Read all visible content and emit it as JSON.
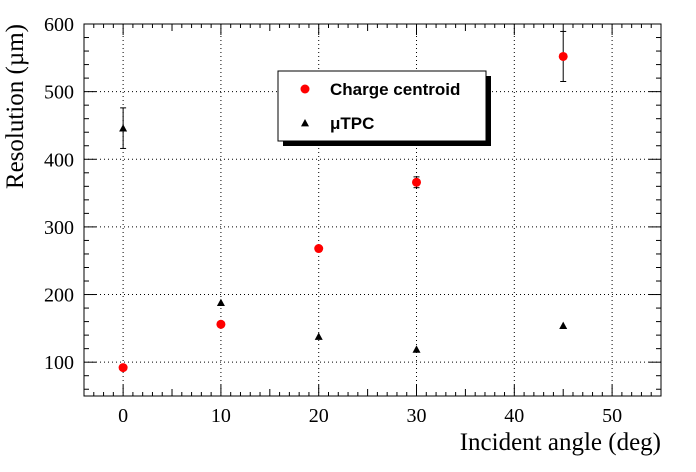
{
  "chart_data": {
    "type": "scatter",
    "title": "",
    "xlabel": "Incident angle (deg)",
    "ylabel": "Resolution (µm)",
    "xlim": [
      -4,
      55
    ],
    "ylim": [
      50,
      600
    ],
    "xticks": [
      0,
      10,
      20,
      30,
      40,
      50
    ],
    "yticks": [
      100,
      200,
      300,
      400,
      500,
      600
    ],
    "grid": true,
    "legend_position": "top-center",
    "series": [
      {
        "name": "Charge centroid",
        "marker": "circle",
        "color": "#ff0000",
        "points": [
          {
            "x": 0,
            "y": 92,
            "err": 0
          },
          {
            "x": 10,
            "y": 156,
            "err": 0
          },
          {
            "x": 20,
            "y": 268,
            "err": 0
          },
          {
            "x": 30,
            "y": 366,
            "err": 8
          },
          {
            "x": 45,
            "y": 552,
            "err": 37
          }
        ]
      },
      {
        "name": "μTPC",
        "marker": "triangle",
        "color": "#000000",
        "points": [
          {
            "x": 0,
            "y": 446,
            "err": 30
          },
          {
            "x": 10,
            "y": 188,
            "err": 0
          },
          {
            "x": 20,
            "y": 138,
            "err": 0
          },
          {
            "x": 30,
            "y": 119,
            "err": 0
          },
          {
            "x": 45,
            "y": 154,
            "err": 0
          }
        ]
      }
    ]
  }
}
